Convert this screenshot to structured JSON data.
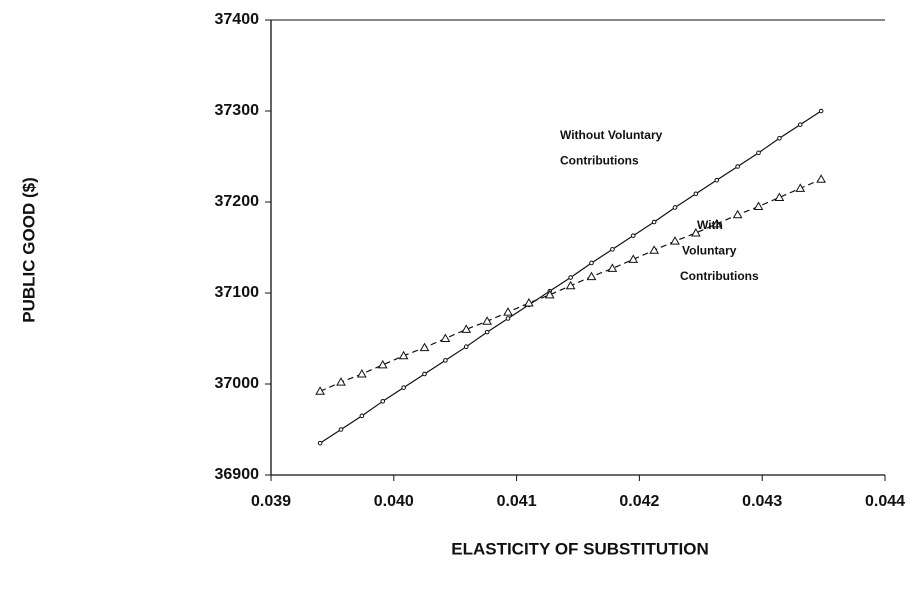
{
  "chart_data": {
    "type": "line",
    "xlabel": "ELASTICITY OF SUBSTITUTION",
    "ylabel": "PUBLIC GOOD ($)",
    "xlim": [
      0.039,
      0.044
    ],
    "xticks": [
      0.039,
      {
        "value": 0.04,
        "label": "0.040"
      },
      0.041,
      0.042,
      0.043,
      0.044
    ],
    "ylim": [
      36900,
      37400
    ],
    "yticks": [
      36900,
      37000,
      37100,
      37200,
      37300,
      37400
    ],
    "x": [
      0.0394,
      0.03957,
      0.03974,
      0.03991,
      0.04008,
      0.04025,
      0.04042,
      0.04059,
      0.04076,
      0.04093,
      0.0411,
      0.04127,
      0.04144,
      0.04161,
      0.04178,
      0.04195,
      0.04212,
      0.04229,
      0.04246,
      0.04263,
      0.0428,
      0.04297,
      0.04314,
      0.04331,
      0.04348
    ],
    "series": [
      {
        "marker": "circle",
        "dash": false,
        "color": "#111111",
        "values": [
          36935,
          36950,
          36965,
          36981,
          36996,
          37011,
          37026,
          37041,
          37057,
          37072,
          37087,
          37102,
          37117,
          37133,
          37148,
          37163,
          37178,
          37194,
          37209,
          37224,
          37239,
          37254,
          37270,
          37285,
          37300
        ],
        "annotation": [
          "Without Voluntary",
          "Contributions"
        ]
      },
      {
        "marker": "triangle",
        "dash": true,
        "color": "#111111",
        "values": [
          36992,
          37002,
          37011,
          37021,
          37031,
          37040,
          37050,
          37060,
          37069,
          37079,
          37089,
          37098,
          37108,
          37118,
          37127,
          37137,
          37147,
          37157,
          37166,
          37176,
          37186,
          37195,
          37205,
          37215,
          37225
        ],
        "annotation": [
          "With",
          "Voluntary",
          "Contributions"
        ]
      }
    ]
  }
}
